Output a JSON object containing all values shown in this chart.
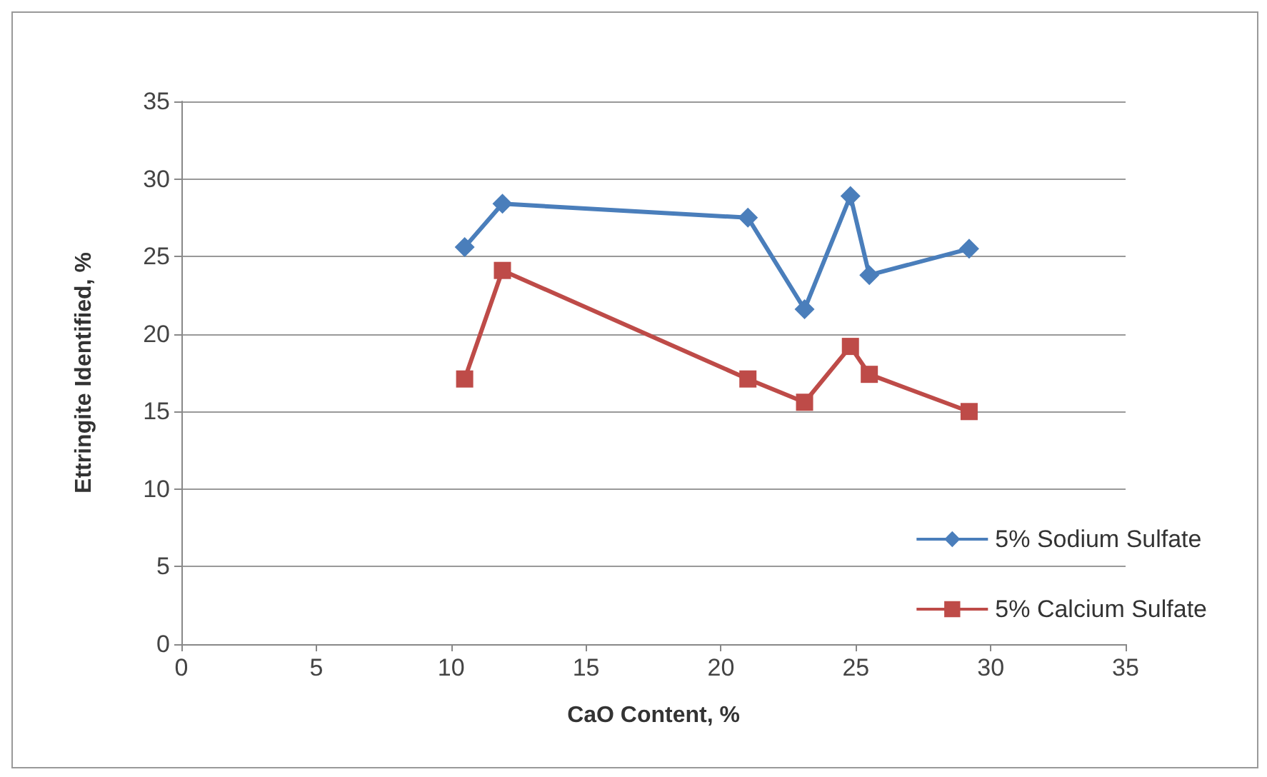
{
  "chart_data": {
    "type": "line",
    "xlabel": "CaO Content, %",
    "ylabel": "Ettringite Identified, %",
    "xlim": [
      0,
      35
    ],
    "xticks": [
      0,
      5,
      10,
      15,
      20,
      25,
      30,
      35
    ],
    "ylim": [
      0,
      35
    ],
    "yticks": [
      0,
      5,
      10,
      15,
      20,
      25,
      30,
      35
    ],
    "grid": "y",
    "legend": "right",
    "series": [
      {
        "name": "5% Sodium Sulfate",
        "color": "#4a7ebb",
        "marker": "diamond",
        "x": [
          10.5,
          11.9,
          21.0,
          23.1,
          24.8,
          25.5,
          29.2
        ],
        "values": [
          25.6,
          28.4,
          27.5,
          21.6,
          28.9,
          23.8,
          25.5
        ]
      },
      {
        "name": "5% Calcium Sulfate",
        "color": "#be4b48",
        "marker": "square",
        "x": [
          10.5,
          11.9,
          21.0,
          23.1,
          24.8,
          25.5,
          29.2
        ],
        "values": [
          17.1,
          24.1,
          17.1,
          15.6,
          19.2,
          17.4,
          15.0
        ]
      }
    ]
  }
}
